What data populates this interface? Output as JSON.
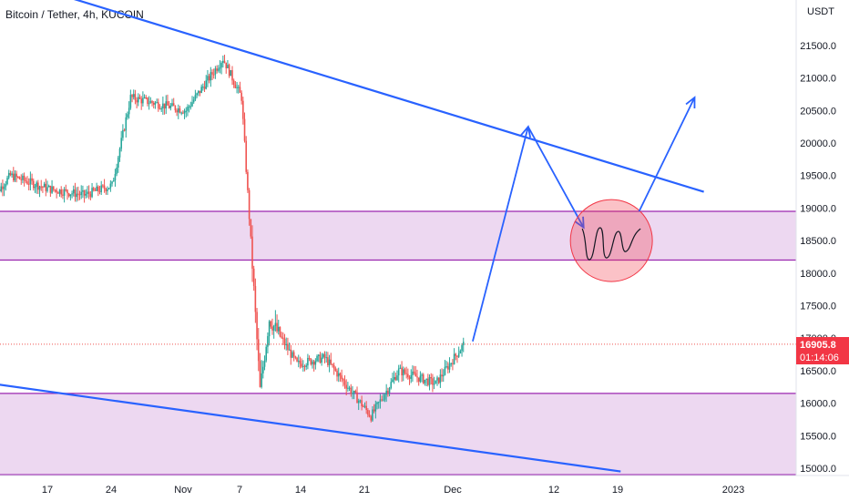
{
  "header": {
    "title": "Bitcoin / Tether, 4h, KUCOIN"
  },
  "price_axis": {
    "unit": "USDT"
  },
  "last_price": {
    "value": "16905.8",
    "countdown": "01:14:06"
  },
  "colors": {
    "up": "#26a69a",
    "down": "#ef5350",
    "trendline": "#2962ff",
    "zone_fill": "#e1bee7",
    "zone_border": "#9c27b0",
    "circle": "#f23645"
  },
  "chart_data": {
    "type": "candlestick",
    "title": "Bitcoin / Tether, 4h, KUCOIN",
    "ylabel": "USDT",
    "ylim": [
      14900,
      22200
    ],
    "y_ticks": [
      15000,
      15500,
      16000,
      16500,
      17000,
      17500,
      18000,
      18500,
      19000,
      19500,
      20000,
      20500,
      21000,
      21500
    ],
    "x_ticks": [
      "17",
      "24",
      "Nov",
      "7",
      "14",
      "21",
      "Dec",
      "12",
      "19",
      "2023"
    ],
    "grid": false,
    "zones": [
      {
        "from": 18200,
        "to": 18950
      },
      {
        "from": 14900,
        "to": 16150
      }
    ],
    "trendlines": [
      {
        "from": [
          "Oct 11",
          22600
        ],
        "to": [
          "Dec 27",
          19250
        ]
      },
      {
        "from": [
          "Oct 11",
          16300
        ],
        "to": [
          "Dec 18",
          14950
        ]
      }
    ],
    "price_path": [
      {
        "date": "Oct 11",
        "close": 19150
      },
      {
        "date": "Oct 13",
        "close": 19500
      },
      {
        "date": "Oct 17",
        "close": 19300
      },
      {
        "date": "Oct 21",
        "close": 19200
      },
      {
        "date": "Oct 24",
        "close": 19350
      },
      {
        "date": "Oct 26",
        "close": 20700
      },
      {
        "date": "Oct 29",
        "close": 20600
      },
      {
        "date": "Nov 1",
        "close": 20500
      },
      {
        "date": "Nov 5",
        "close": 21300
      },
      {
        "date": "Nov 7",
        "close": 20700
      },
      {
        "date": "Nov 8",
        "close": 18500
      },
      {
        "date": "Nov 9",
        "close": 16200
      },
      {
        "date": "Nov 10",
        "close": 17300
      },
      {
        "date": "Nov 13",
        "close": 16600
      },
      {
        "date": "Nov 16",
        "close": 16700
      },
      {
        "date": "Nov 21",
        "close": 15800
      },
      {
        "date": "Nov 24",
        "close": 16500
      },
      {
        "date": "Nov 28",
        "close": 16300
      },
      {
        "date": "Dec 1",
        "close": 16900
      }
    ],
    "last_price": 16905.8,
    "annotations": [
      {
        "type": "arrow",
        "points": [
          [
            "Dec 2",
            16950
          ],
          [
            "Dec 8",
            20250
          ]
        ]
      },
      {
        "type": "arrow",
        "points": [
          [
            "Dec 8",
            20250
          ],
          [
            "Dec 14",
            18700
          ]
        ]
      },
      {
        "type": "circle",
        "center": [
          "Dec 17",
          18500
        ]
      },
      {
        "type": "arrow",
        "points": [
          [
            "Dec 20",
            18950
          ],
          [
            "Dec 26",
            20700
          ]
        ]
      }
    ]
  }
}
